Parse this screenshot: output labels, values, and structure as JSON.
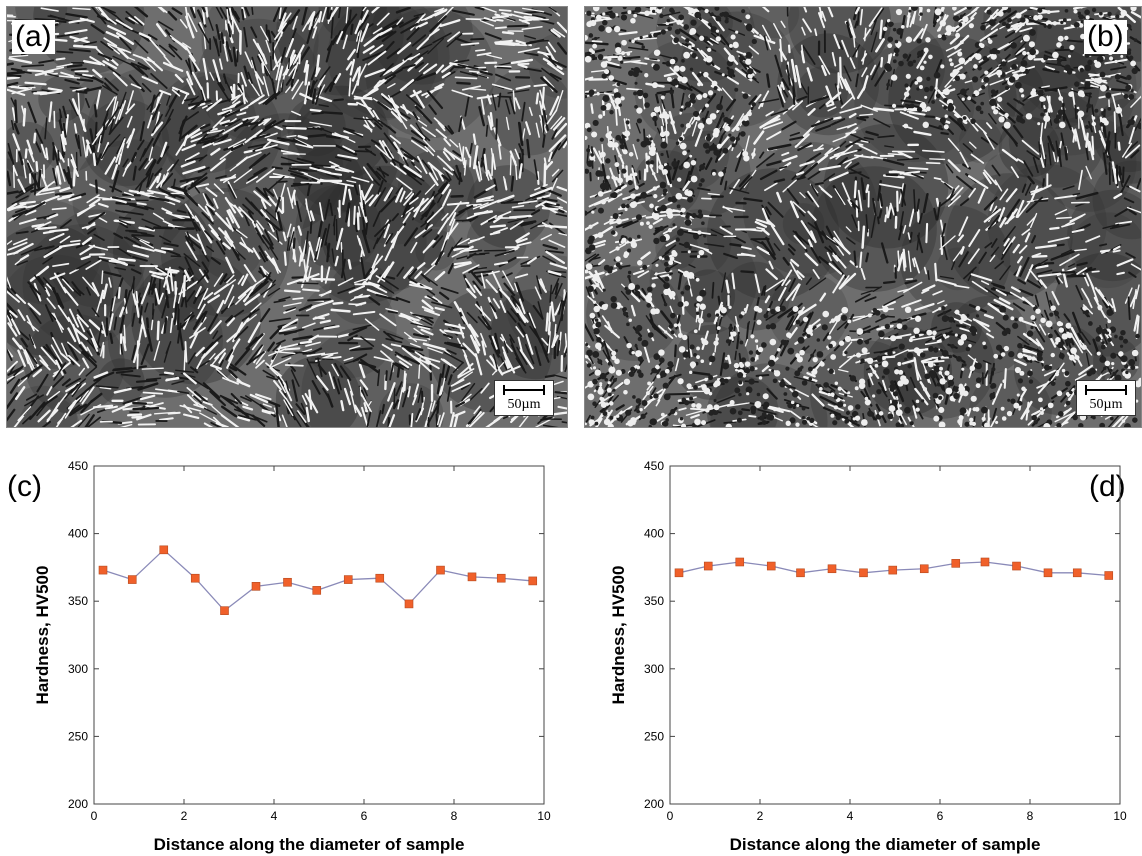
{
  "panels": {
    "a": {
      "label": "(a)",
      "scalebar": "50µm"
    },
    "b": {
      "label": "(b)",
      "scalebar": "50µm"
    },
    "c": {
      "label": "(c)"
    },
    "d": {
      "label": "(d)"
    }
  },
  "colors": {
    "marker": "#f0602a",
    "line": "#8a8ab8"
  },
  "chart_data": [
    {
      "type": "line",
      "panel": "(c)",
      "xlabel": "Distance along the diameter of sample",
      "ylabel": "Hardness, HV500",
      "xlim": [
        0,
        10
      ],
      "ylim": [
        200,
        450
      ],
      "xticks": [
        0,
        2,
        4,
        6,
        8,
        10
      ],
      "yticks": [
        200,
        250,
        300,
        350,
        400,
        450
      ],
      "x": [
        0.2,
        0.85,
        1.55,
        2.25,
        2.9,
        3.6,
        4.3,
        4.95,
        5.65,
        6.35,
        7.0,
        7.7,
        8.4,
        9.05,
        9.75
      ],
      "y": [
        373,
        366,
        388,
        367,
        343,
        361,
        364,
        358,
        366,
        367,
        348,
        373,
        368,
        367,
        365
      ]
    },
    {
      "type": "line",
      "panel": "(d)",
      "xlabel": "Distance along the diameter of sample",
      "ylabel": "Hardness, HV500",
      "xlim": [
        0,
        10
      ],
      "ylim": [
        200,
        450
      ],
      "xticks": [
        0,
        2,
        4,
        6,
        8,
        10
      ],
      "yticks": [
        200,
        250,
        300,
        350,
        400,
        450
      ],
      "x": [
        0.2,
        0.85,
        1.55,
        2.25,
        2.9,
        3.6,
        4.3,
        4.95,
        5.65,
        6.35,
        7.0,
        7.7,
        8.4,
        9.05,
        9.75
      ],
      "y": [
        371,
        376,
        379,
        376,
        371,
        374,
        371,
        373,
        374,
        378,
        379,
        376,
        371,
        371,
        369
      ]
    }
  ]
}
